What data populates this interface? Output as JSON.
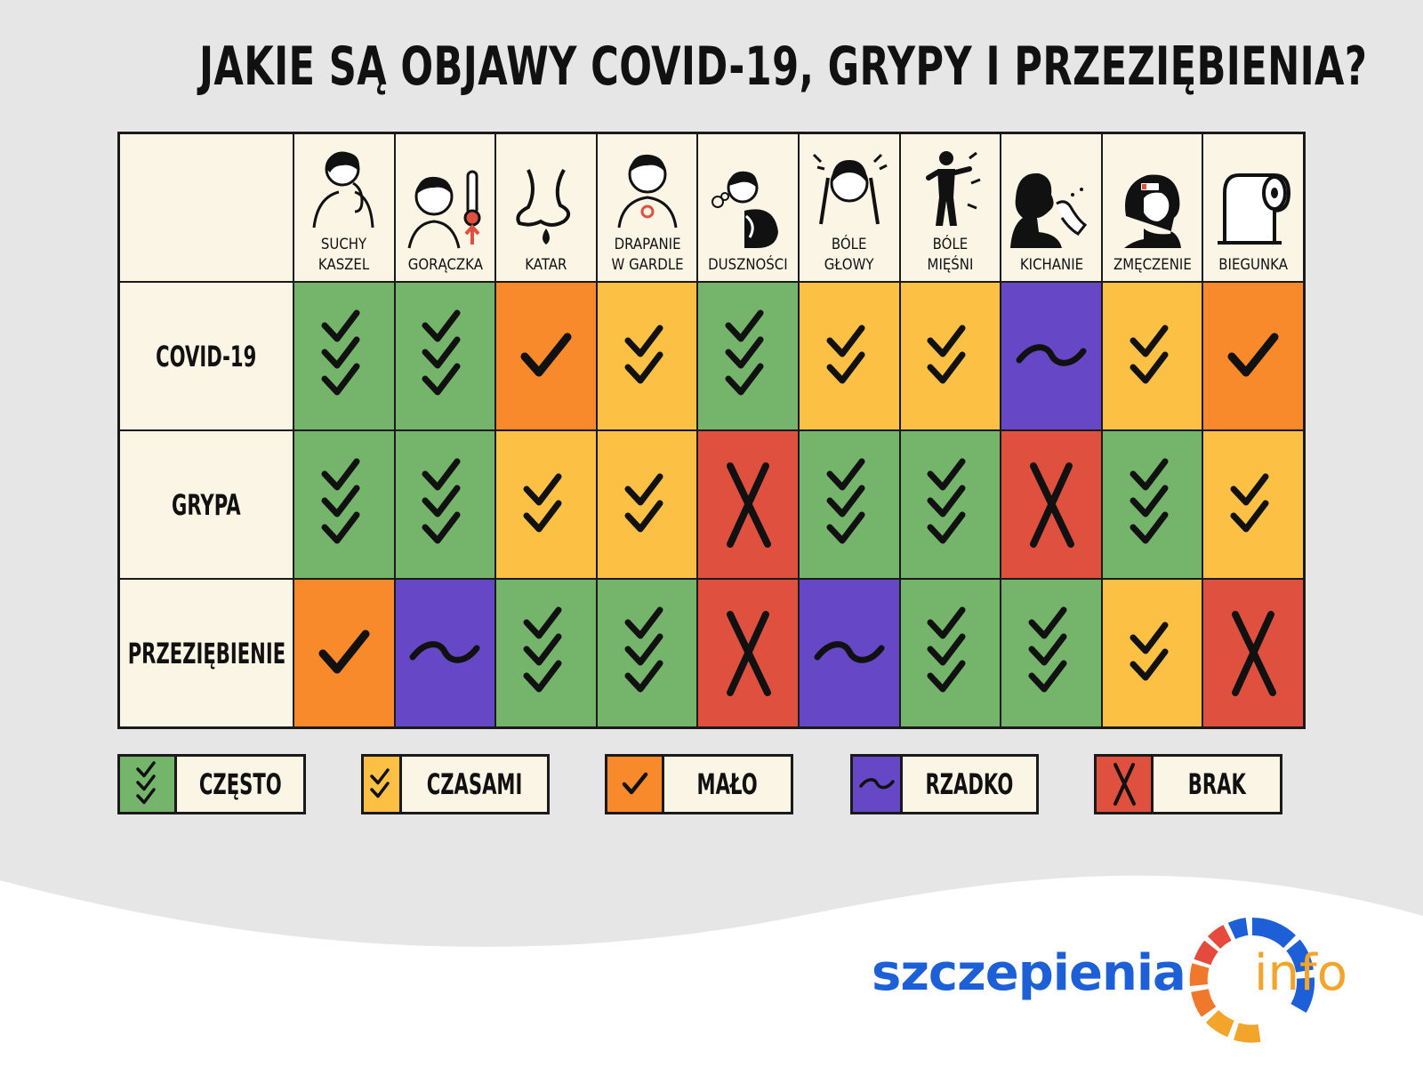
{
  "title": "JAKIE SĄ OBJAWY COVID-19, GRYPY I PRZEZIĘBIENIA?",
  "colors": {
    "czesto": "#74b46b",
    "czasami": "#fcc044",
    "malo": "#f88a2b",
    "rzadko": "#6648c6",
    "brak": "#e0503f",
    "cream": "#fbf5e6"
  },
  "columns": [
    {
      "label": "SUCHY\nKASZEL",
      "icon": "dry-cough-icon"
    },
    {
      "label": "GORĄCZKA",
      "icon": "fever-icon"
    },
    {
      "label": "KATAR",
      "icon": "runny-nose-icon"
    },
    {
      "label": "DRAPANIE\nW GARDLE",
      "icon": "sore-throat-icon"
    },
    {
      "label": "DUSZNOŚCI",
      "icon": "shortness-of-breath-icon"
    },
    {
      "label": "BÓLE\nGŁOWY",
      "icon": "headache-icon"
    },
    {
      "label": "BÓLE\nMIĘŚNI",
      "icon": "muscle-pain-icon"
    },
    {
      "label": "KICHANIE",
      "icon": "sneezing-icon"
    },
    {
      "label": "ZMĘCZENIE",
      "icon": "fatigue-icon"
    },
    {
      "label": "BIEGUNKA",
      "icon": "toilet-paper-icon"
    }
  ],
  "rows": [
    {
      "label": "COVID-19",
      "values": [
        "czesto",
        "czesto",
        "malo",
        "czasami",
        "czesto",
        "czasami",
        "czasami",
        "rzadko",
        "czasami",
        "malo"
      ]
    },
    {
      "label": "GRYPA",
      "values": [
        "czesto",
        "czesto",
        "czasami",
        "czasami",
        "brak",
        "czesto",
        "czesto",
        "brak",
        "czesto",
        "czasami"
      ]
    },
    {
      "label": "PRZEZIĘBIENIE",
      "values": [
        "malo",
        "rzadko",
        "czesto",
        "czesto",
        "brak",
        "rzadko",
        "czesto",
        "czesto",
        "czasami",
        "brak"
      ]
    }
  ],
  "legend": [
    {
      "key": "czesto",
      "label": "CZĘSTO"
    },
    {
      "key": "czasami",
      "label": "CZASAMI"
    },
    {
      "key": "malo",
      "label": "MAŁO"
    },
    {
      "key": "rzadko",
      "label": "RZADKO"
    },
    {
      "key": "brak",
      "label": "BRAK"
    }
  ],
  "logo": {
    "word": "szczepienia",
    "suffix": "info"
  }
}
